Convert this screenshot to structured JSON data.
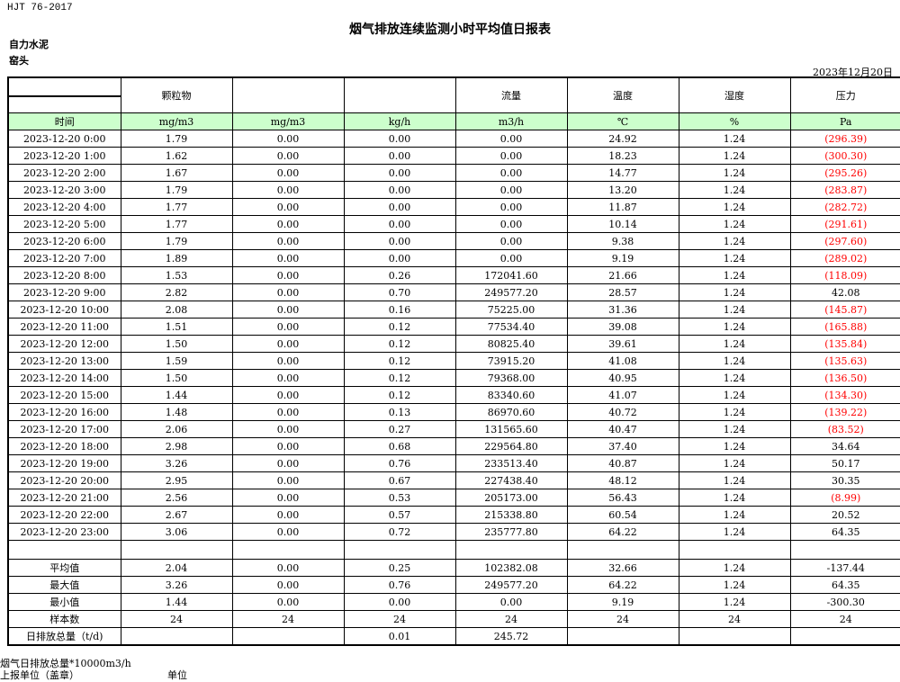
{
  "header": {
    "standard": "HJT  76-2017",
    "title": "烟气排放连续监测小时平均值日报表",
    "company": "自力水泥",
    "site": "窑头",
    "date": "2023年12月20日"
  },
  "table": {
    "columns": [
      "",
      "颗粒物",
      "",
      "",
      "流量",
      "温度",
      "湿度",
      "压力"
    ],
    "units": [
      "时间",
      "mg/m3",
      "mg/m3",
      "kg/h",
      "m3/h",
      "℃",
      "%",
      "Pa"
    ],
    "rows": [
      [
        "2023-12-20 0:00",
        "1.79",
        "0.00",
        "0.00",
        "0.00",
        "24.92",
        "1.24",
        "(296.39)"
      ],
      [
        "2023-12-20 1:00",
        "1.62",
        "0.00",
        "0.00",
        "0.00",
        "18.23",
        "1.24",
        "(300.30)"
      ],
      [
        "2023-12-20 2:00",
        "1.67",
        "0.00",
        "0.00",
        "0.00",
        "14.77",
        "1.24",
        "(295.26)"
      ],
      [
        "2023-12-20 3:00",
        "1.79",
        "0.00",
        "0.00",
        "0.00",
        "13.20",
        "1.24",
        "(283.87)"
      ],
      [
        "2023-12-20 4:00",
        "1.77",
        "0.00",
        "0.00",
        "0.00",
        "11.87",
        "1.24",
        "(282.72)"
      ],
      [
        "2023-12-20 5:00",
        "1.77",
        "0.00",
        "0.00",
        "0.00",
        "10.14",
        "1.24",
        "(291.61)"
      ],
      [
        "2023-12-20 6:00",
        "1.79",
        "0.00",
        "0.00",
        "0.00",
        "9.38",
        "1.24",
        "(297.60)"
      ],
      [
        "2023-12-20 7:00",
        "1.89",
        "0.00",
        "0.00",
        "0.00",
        "9.19",
        "1.24",
        "(289.02)"
      ],
      [
        "2023-12-20 8:00",
        "1.53",
        "0.00",
        "0.26",
        "172041.60",
        "21.66",
        "1.24",
        "(118.09)"
      ],
      [
        "2023-12-20 9:00",
        "2.82",
        "0.00",
        "0.70",
        "249577.20",
        "28.57",
        "1.24",
        "42.08"
      ],
      [
        "2023-12-20 10:00",
        "2.08",
        "0.00",
        "0.16",
        "75225.00",
        "31.36",
        "1.24",
        "(145.87)"
      ],
      [
        "2023-12-20 11:00",
        "1.51",
        "0.00",
        "0.12",
        "77534.40",
        "39.08",
        "1.24",
        "(165.88)"
      ],
      [
        "2023-12-20 12:00",
        "1.50",
        "0.00",
        "0.12",
        "80825.40",
        "39.61",
        "1.24",
        "(135.84)"
      ],
      [
        "2023-12-20 13:00",
        "1.59",
        "0.00",
        "0.12",
        "73915.20",
        "41.08",
        "1.24",
        "(135.63)"
      ],
      [
        "2023-12-20 14:00",
        "1.50",
        "0.00",
        "0.12",
        "79368.00",
        "40.95",
        "1.24",
        "(136.50)"
      ],
      [
        "2023-12-20 15:00",
        "1.44",
        "0.00",
        "0.12",
        "83340.60",
        "41.07",
        "1.24",
        "(134.30)"
      ],
      [
        "2023-12-20 16:00",
        "1.48",
        "0.00",
        "0.13",
        "86970.60",
        "40.72",
        "1.24",
        "(139.22)"
      ],
      [
        "2023-12-20 17:00",
        "2.06",
        "0.00",
        "0.27",
        "131565.60",
        "40.47",
        "1.24",
        "(83.52)"
      ],
      [
        "2023-12-20 18:00",
        "2.98",
        "0.00",
        "0.68",
        "229564.80",
        "37.40",
        "1.24",
        "34.64"
      ],
      [
        "2023-12-20 19:00",
        "3.26",
        "0.00",
        "0.76",
        "233513.40",
        "40.87",
        "1.24",
        "50.17"
      ],
      [
        "2023-12-20 20:00",
        "2.95",
        "0.00",
        "0.67",
        "227438.40",
        "48.12",
        "1.24",
        "30.35"
      ],
      [
        "2023-12-20 21:00",
        "2.56",
        "0.00",
        "0.53",
        "205173.00",
        "56.43",
        "1.24",
        "(8.99)"
      ],
      [
        "2023-12-20 22:00",
        "2.67",
        "0.00",
        "0.57",
        "215338.80",
        "60.54",
        "1.24",
        "20.52"
      ],
      [
        "2023-12-20 23:00",
        "3.06",
        "0.00",
        "0.72",
        "235777.80",
        "64.22",
        "1.24",
        "64.35"
      ]
    ],
    "summary": [
      [
        "平均值",
        "2.04",
        "0.00",
        "0.25",
        "102382.08",
        "32.66",
        "1.24",
        "-137.44"
      ],
      [
        "最大值",
        "3.26",
        "0.00",
        "0.76",
        "249577.20",
        "64.22",
        "1.24",
        "64.35"
      ],
      [
        "最小值",
        "1.44",
        "0.00",
        "0.00",
        "0.00",
        "9.19",
        "1.24",
        "-300.30"
      ],
      [
        "样本数",
        "24",
        "24",
        "24",
        "24",
        "24",
        "24",
        "24"
      ],
      [
        "日排放总量（t/d)",
        "",
        "",
        "0.01",
        "245.72",
        "",
        "",
        ""
      ]
    ],
    "negative_color": "#ff0000",
    "unit_row_color": "#ccffcc"
  },
  "footer": {
    "note": "烟气日排放总量*10000m3/h",
    "reporter_label": "上报单位（盖章）",
    "unit_label": "单位"
  }
}
